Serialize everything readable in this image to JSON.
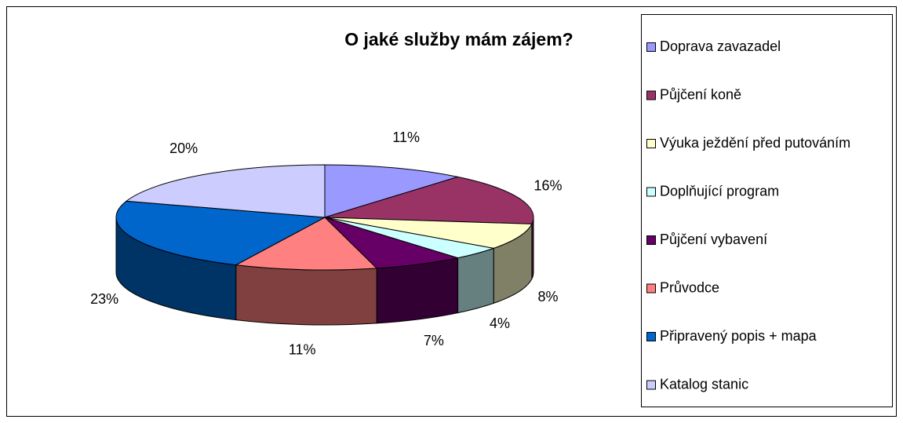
{
  "chart_data": {
    "type": "pie3d",
    "title": "O jaké služby mám zájem?",
    "categories": [
      "Doprava zavazadel",
      "Půjčení koně",
      "Výuka ježdění před putováním",
      "Doplňující program",
      "Půjčení vybavení",
      "Průvodce",
      "Připravený popis + mapa",
      "Katalog stanic"
    ],
    "values": [
      11,
      16,
      8,
      4,
      7,
      11,
      23,
      20
    ],
    "value_labels": [
      "11%",
      "16%",
      "8%",
      "4%",
      "7%",
      "11%",
      "23%",
      "20%"
    ],
    "colors": [
      "#9999ff",
      "#993366",
      "#ffffcc",
      "#ccffff",
      "#660066",
      "#ff8080",
      "#0066cc",
      "#ccccff"
    ],
    "legend": "right"
  }
}
